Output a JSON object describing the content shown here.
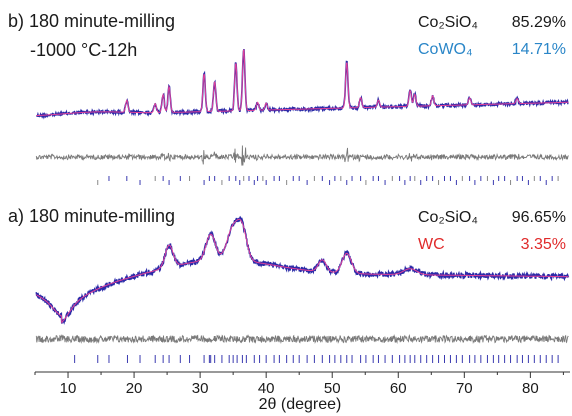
{
  "chart_data": [
    {
      "type": "line",
      "panel": "b",
      "title": "b) 180 minute-milling",
      "subtitle": "-1000 °C-12h",
      "xlim": [
        5,
        86
      ],
      "phases": [
        {
          "name": "Co₂SiO₄",
          "percent": "85.29%",
          "color": "#1a1a1a"
        },
        {
          "name": "CoWO₄",
          "percent": "14.71%",
          "color": "#2a86c8"
        }
      ],
      "series_colors": {
        "observed": "#2b2ba8",
        "calculated": "#e0409a",
        "difference": "#7a7a7a",
        "bragg": "#3a3ab0"
      },
      "peaks": [
        {
          "x": 18.9,
          "h": 12
        },
        {
          "x": 23.2,
          "h": 9
        },
        {
          "x": 24.4,
          "h": 18
        },
        {
          "x": 25.3,
          "h": 26
        },
        {
          "x": 30.6,
          "h": 38
        },
        {
          "x": 32.2,
          "h": 30
        },
        {
          "x": 35.4,
          "h": 48
        },
        {
          "x": 36.6,
          "h": 62
        },
        {
          "x": 38.7,
          "h": 8
        },
        {
          "x": 40.0,
          "h": 7
        },
        {
          "x": 52.2,
          "h": 46
        },
        {
          "x": 54.3,
          "h": 10
        },
        {
          "x": 57.0,
          "h": 7
        },
        {
          "x": 61.8,
          "h": 16
        },
        {
          "x": 62.5,
          "h": 12
        },
        {
          "x": 65.2,
          "h": 10
        },
        {
          "x": 70.8,
          "h": 7
        },
        {
          "x": 78.0,
          "h": 5
        }
      ],
      "bragg_ticks_x": [
        14.5,
        16.2,
        18.9,
        20.9,
        23.2,
        24.4,
        25.3,
        27.0,
        28.4,
        30.6,
        31.4,
        32.2,
        33.3,
        34.4,
        35.4,
        36.0,
        36.6,
        37.4,
        38.2,
        38.7,
        39.5,
        40.0,
        41.2,
        42.0,
        43.1,
        44.1,
        45.0,
        46.2,
        47.3,
        48.5,
        49.6,
        50.4,
        51.3,
        52.2,
        53.0,
        54.3,
        55.1,
        56.2,
        57.0,
        58.0,
        59.1,
        60.2,
        61.0,
        61.8,
        62.5,
        63.4,
        64.3,
        65.2,
        66.1,
        67.0,
        67.9,
        68.8,
        69.7,
        70.8,
        71.6,
        72.5,
        73.5,
        74.4,
        75.2,
        76.1,
        77.0,
        78.0,
        78.8,
        79.7,
        80.6,
        81.5,
        82.4,
        83.3,
        84.2
      ]
    },
    {
      "type": "line",
      "panel": "a",
      "title": "a) 180 minute-milling",
      "xlim": [
        5,
        86
      ],
      "phases": [
        {
          "name": "Co₂SiO₄",
          "percent": "96.65%",
          "color": "#1a1a1a"
        },
        {
          "name": "WC",
          "percent": "3.35%",
          "color": "#e02a2a"
        }
      ],
      "series_colors": {
        "observed": "#2b2ba8",
        "calculated": "#e0409a",
        "difference": "#7a7a7a",
        "bragg": "#3a3ab0"
      },
      "peaks": [
        {
          "x": 25.3,
          "h": 22,
          "w": 0.6
        },
        {
          "x": 31.6,
          "h": 26,
          "w": 0.7
        },
        {
          "x": 35.0,
          "h": 32,
          "w": 0.9
        },
        {
          "x": 36.4,
          "h": 28,
          "w": 0.7
        },
        {
          "x": 48.5,
          "h": 12,
          "w": 0.6
        },
        {
          "x": 52.2,
          "h": 20,
          "w": 0.7
        },
        {
          "x": 61.8,
          "h": 6,
          "w": 1.0
        }
      ],
      "bragg_ticks_x": [
        11.0,
        14.5,
        16.2,
        19.0,
        20.9,
        23.2,
        24.4,
        25.3,
        27.0,
        28.4,
        30.6,
        31.4,
        31.6,
        32.2,
        33.3,
        34.4,
        35.0,
        35.6,
        36.4,
        37.0,
        38.2,
        39.0,
        40.0,
        41.2,
        42.0,
        43.1,
        44.1,
        45.0,
        46.2,
        47.3,
        48.5,
        49.6,
        50.4,
        51.3,
        52.2,
        53.0,
        54.3,
        55.1,
        56.2,
        57.0,
        58.0,
        59.1,
        60.2,
        61.0,
        61.8,
        62.5,
        63.4,
        64.3,
        65.2,
        66.1,
        67.0,
        67.9,
        68.8,
        69.7,
        70.8,
        71.6,
        72.5,
        73.5,
        74.4,
        75.2,
        76.1,
        77.0,
        78.0,
        78.8,
        79.7,
        80.6,
        81.5,
        82.4,
        83.3,
        84.2
      ]
    }
  ],
  "x_axis": {
    "label": "2θ (degree)",
    "ticks": [
      10,
      20,
      30,
      40,
      50,
      60,
      70,
      80
    ],
    "range": [
      5,
      86
    ]
  }
}
